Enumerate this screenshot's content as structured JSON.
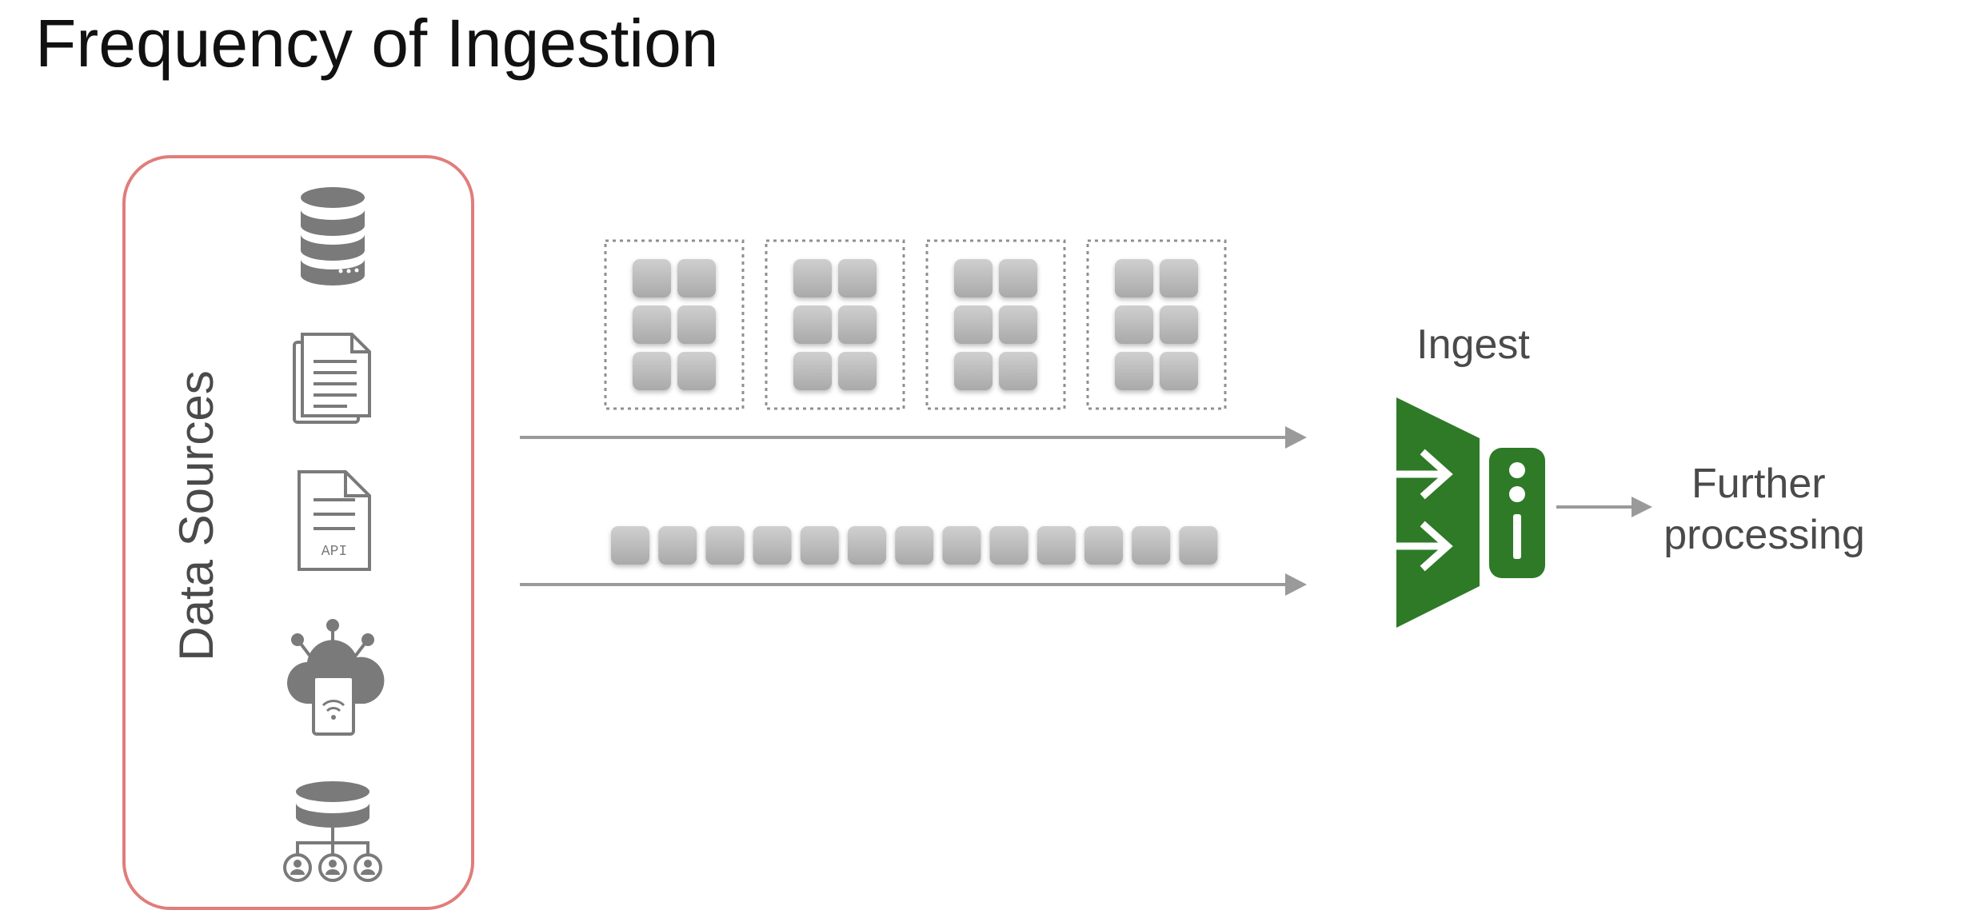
{
  "title": "Frequency of Ingestion",
  "sources": {
    "label": "Data Sources",
    "frame_color": "#e07d7a",
    "items": [
      {
        "icon": "database-icon"
      },
      {
        "icon": "documents-icon"
      },
      {
        "icon": "api-document-icon",
        "text": "API"
      },
      {
        "icon": "iot-cloud-device-icon"
      },
      {
        "icon": "database-users-icon"
      }
    ]
  },
  "batch_flow": {
    "batches": 4,
    "records_per_batch": 6
  },
  "stream_flow": {
    "records": 13
  },
  "ingest": {
    "label": "Ingest",
    "color": "#2e7a27",
    "icon": "ingest-icon"
  },
  "output": {
    "line1": "Further",
    "line2": "processing"
  },
  "colors": {
    "record": "#b5b5b5",
    "arrow": "#9a9a9a",
    "icon_gray": "#7a7a7a"
  }
}
